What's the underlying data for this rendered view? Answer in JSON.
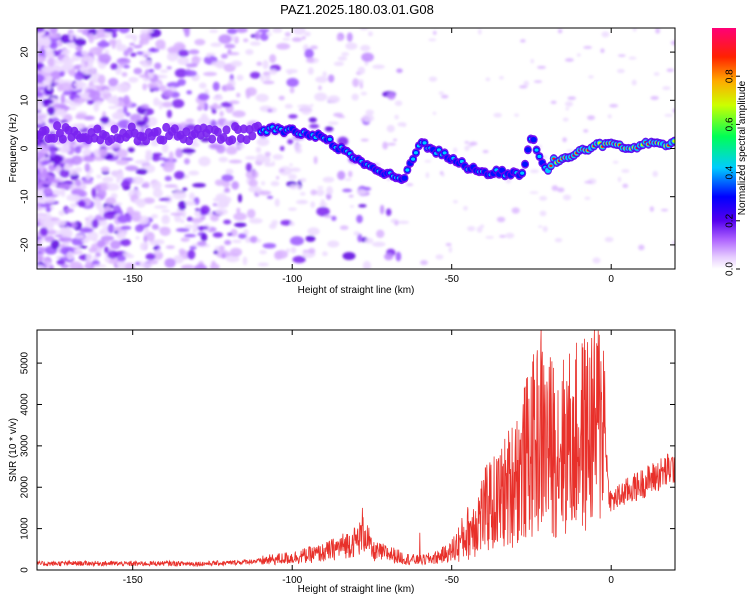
{
  "title": "PAZ1.2025.180.03.01.G08",
  "chart_data": [
    {
      "type": "heatmap",
      "xlabel": "Height of straight line (km)",
      "ylabel": "Frequency (Hz)",
      "xlim": [
        -180,
        20
      ],
      "ylim": [
        -25,
        25
      ],
      "xticks": [
        -150,
        -100,
        -50,
        0
      ],
      "yticks": [
        -20,
        -10,
        0,
        10,
        20
      ],
      "colorbar": {
        "label": "Normalized spectral amplitude",
        "range": [
          0.0,
          1.0
        ],
        "ticks": [
          "0.0",
          "0.2",
          "0.4",
          "0.6",
          "0.8"
        ],
        "colormap": "rainbow (white-violet-blue-cyan-green-yellow-orange-red-magenta)"
      },
      "ridge": [
        {
          "x": -180,
          "y": 3.5
        },
        {
          "x": -160,
          "y": 3.0
        },
        {
          "x": -140,
          "y": 3.0
        },
        {
          "x": -120,
          "y": 3.0
        },
        {
          "x": -110,
          "y": 3.5
        },
        {
          "x": -105,
          "y": 4.0
        },
        {
          "x": -100,
          "y": 3.5
        },
        {
          "x": -95,
          "y": 3.0
        },
        {
          "x": -90,
          "y": 2.5
        },
        {
          "x": -85,
          "y": 0.0
        },
        {
          "x": -80,
          "y": -2.0
        },
        {
          "x": -75,
          "y": -4.0
        },
        {
          "x": -70,
          "y": -5.5
        },
        {
          "x": -65,
          "y": -6.5
        },
        {
          "x": -60,
          "y": 1.5
        },
        {
          "x": -55,
          "y": -0.5
        },
        {
          "x": -50,
          "y": -2.0
        },
        {
          "x": -45,
          "y": -4.0
        },
        {
          "x": -40,
          "y": -5.0
        },
        {
          "x": -35,
          "y": -5.0
        },
        {
          "x": -28,
          "y": -5.5
        },
        {
          "x": -25,
          "y": 2.5
        },
        {
          "x": -20,
          "y": -5.0
        },
        {
          "x": -18,
          "y": -2.5
        },
        {
          "x": -12,
          "y": -1.5
        },
        {
          "x": -5,
          "y": 0.5
        },
        {
          "x": 0,
          "y": 1.5
        },
        {
          "x": 5,
          "y": 0.0
        },
        {
          "x": 10,
          "y": 1.0
        },
        {
          "x": 20,
          "y": 1.0
        }
      ]
    },
    {
      "type": "line",
      "xlabel": "Height of straight line (km)",
      "ylabel": "SNR (10 * v/v)",
      "xlim": [
        -180,
        20
      ],
      "ylim": [
        0,
        5800
      ],
      "xticks": [
        -150,
        -100,
        -50,
        0
      ],
      "yticks": [
        0,
        1000,
        2000,
        3000,
        4000,
        5000
      ],
      "series": [
        {
          "color": "#e8302a",
          "points": [
            [
              -180,
              150
            ],
            [
              -170,
              160
            ],
            [
              -160,
              160
            ],
            [
              -150,
              150
            ],
            [
              -140,
              160
            ],
            [
              -130,
              150
            ],
            [
              -120,
              170
            ],
            [
              -110,
              220
            ],
            [
              -100,
              300
            ],
            [
              -90,
              420
            ],
            [
              -85,
              560
            ],
            [
              -80,
              700
            ],
            [
              -77,
              900
            ],
            [
              -75,
              450
            ],
            [
              -70,
              400
            ],
            [
              -65,
              280
            ],
            [
              -60,
              230
            ],
            [
              -55,
              300
            ],
            [
              -50,
              450
            ],
            [
              -45,
              900
            ],
            [
              -40,
              1400
            ],
            [
              -35,
              1700
            ],
            [
              -30,
              2200
            ],
            [
              -25,
              2900
            ],
            [
              -22,
              3300
            ],
            [
              -20,
              3000
            ],
            [
              -15,
              3000
            ],
            [
              -10,
              3200
            ],
            [
              -5,
              3500
            ],
            [
              -2,
              3700
            ],
            [
              -1,
              2000
            ],
            [
              0,
              1650
            ],
            [
              5,
              1900
            ],
            [
              10,
              2100
            ],
            [
              15,
              2300
            ],
            [
              20,
              2500
            ]
          ],
          "peaks": [
            {
              "x": -78,
              "y": 1500
            },
            {
              "x": -60,
              "y": 900
            },
            {
              "x": -38,
              "y": 2600
            },
            {
              "x": -30,
              "y": 3400
            },
            {
              "x": -24,
              "y": 4600
            },
            {
              "x": -22,
              "y": 5800
            },
            {
              "x": -12,
              "y": 4200
            },
            {
              "x": -3,
              "y": 4300
            }
          ]
        }
      ]
    }
  ]
}
